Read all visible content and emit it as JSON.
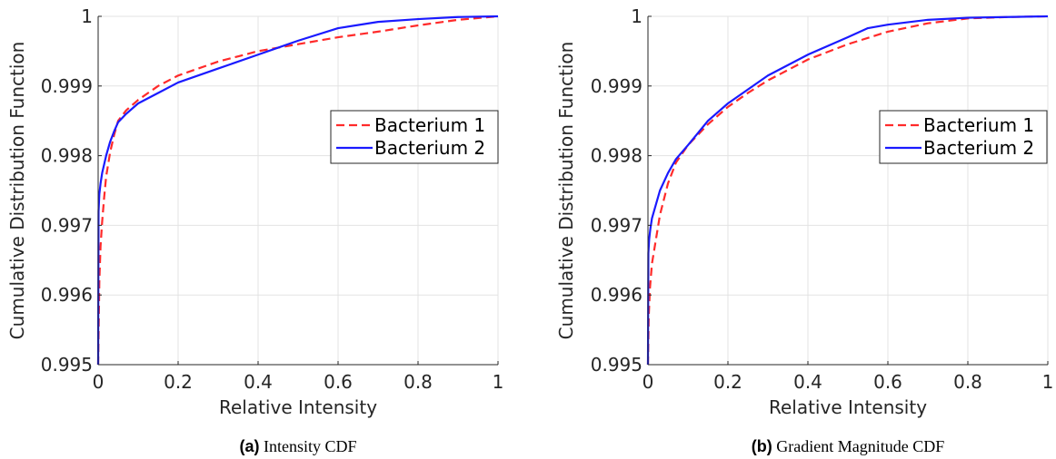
{
  "chart_data": [
    {
      "type": "line",
      "panel": "(a)",
      "caption": "Intensity CDF",
      "xlabel": "Relative Intensity",
      "ylabel": "Cumulative Distribution Function",
      "xlim": [
        0,
        1
      ],
      "ylim": [
        0.995,
        1
      ],
      "xticks": [
        "0",
        "0.2",
        "0.4",
        "0.6",
        "0.8",
        "1"
      ],
      "yticks": [
        "0.995",
        "0.996",
        "0.997",
        "0.998",
        "0.999",
        "1"
      ],
      "grid": true,
      "legend_position": "right",
      "series": [
        {
          "name": "Bacterium 1",
          "style": "dashed",
          "color": "#ff2a2a",
          "x": [
            0,
            0.003,
            0.006,
            0.01,
            0.015,
            0.02,
            0.03,
            0.04,
            0.05,
            0.07,
            0.1,
            0.15,
            0.2,
            0.3,
            0.4,
            0.5,
            0.6,
            0.7,
            0.8,
            0.9,
            1.0
          ],
          "y": [
            0.995,
            0.9962,
            0.9967,
            0.99705,
            0.9974,
            0.9977,
            0.99805,
            0.9983,
            0.9985,
            0.99865,
            0.9988,
            0.999,
            0.99915,
            0.99935,
            0.9995,
            0.9996,
            0.9997,
            0.99978,
            0.99987,
            0.99995,
            1.0
          ]
        },
        {
          "name": "Bacterium 2",
          "style": "solid",
          "color": "#1a1aff",
          "x": [
            0,
            0.001,
            0.003,
            0.006,
            0.01,
            0.02,
            0.03,
            0.04,
            0.05,
            0.07,
            0.1,
            0.15,
            0.2,
            0.3,
            0.4,
            0.45,
            0.5,
            0.6,
            0.7,
            0.8,
            0.9,
            1.0
          ],
          "y": [
            0.995,
            0.9972,
            0.99745,
            0.9976,
            0.99775,
            0.998,
            0.9982,
            0.99835,
            0.99848,
            0.9986,
            0.99875,
            0.9989,
            0.99905,
            0.99925,
            0.99945,
            0.99955,
            0.99965,
            0.99983,
            0.99992,
            0.99996,
            0.99999,
            1.0
          ]
        }
      ]
    },
    {
      "type": "line",
      "panel": "(b)",
      "caption": "Gradient Magnitude CDF",
      "xlabel": "Relative Intensity",
      "ylabel": "Cumulative Distribution Function",
      "xlim": [
        0,
        1
      ],
      "ylim": [
        0.995,
        1
      ],
      "xticks": [
        "0",
        "0.2",
        "0.4",
        "0.6",
        "0.8",
        "1"
      ],
      "yticks": [
        "0.995",
        "0.996",
        "0.997",
        "0.998",
        "0.999",
        "1"
      ],
      "grid": true,
      "legend_position": "right",
      "series": [
        {
          "name": "Bacterium 1",
          "style": "dashed",
          "color": "#ff2a2a",
          "x": [
            0,
            0.002,
            0.005,
            0.01,
            0.02,
            0.03,
            0.05,
            0.07,
            0.1,
            0.15,
            0.2,
            0.25,
            0.3,
            0.4,
            0.5,
            0.6,
            0.7,
            0.8,
            0.9,
            1.0
          ],
          "y": [
            0.995,
            0.9957,
            0.9961,
            0.99645,
            0.9968,
            0.99715,
            0.9976,
            0.9979,
            0.99815,
            0.99845,
            0.9987,
            0.9989,
            0.99908,
            0.99938,
            0.9996,
            0.99978,
            0.9999,
            0.99997,
            0.99999,
            1.0
          ]
        },
        {
          "name": "Bacterium 2",
          "style": "solid",
          "color": "#1a1aff",
          "x": [
            0,
            0.001,
            0.003,
            0.006,
            0.01,
            0.02,
            0.03,
            0.05,
            0.07,
            0.1,
            0.15,
            0.2,
            0.25,
            0.3,
            0.4,
            0.5,
            0.55,
            0.6,
            0.7,
            0.8,
            0.9,
            1.0
          ],
          "y": [
            0.995,
            0.9966,
            0.9968,
            0.99695,
            0.9971,
            0.9973,
            0.9975,
            0.99775,
            0.99795,
            0.99815,
            0.9985,
            0.99875,
            0.99895,
            0.99915,
            0.99945,
            0.9997,
            0.99983,
            0.99988,
            0.99995,
            0.99998,
            0.99999,
            1.0
          ]
        }
      ]
    }
  ]
}
